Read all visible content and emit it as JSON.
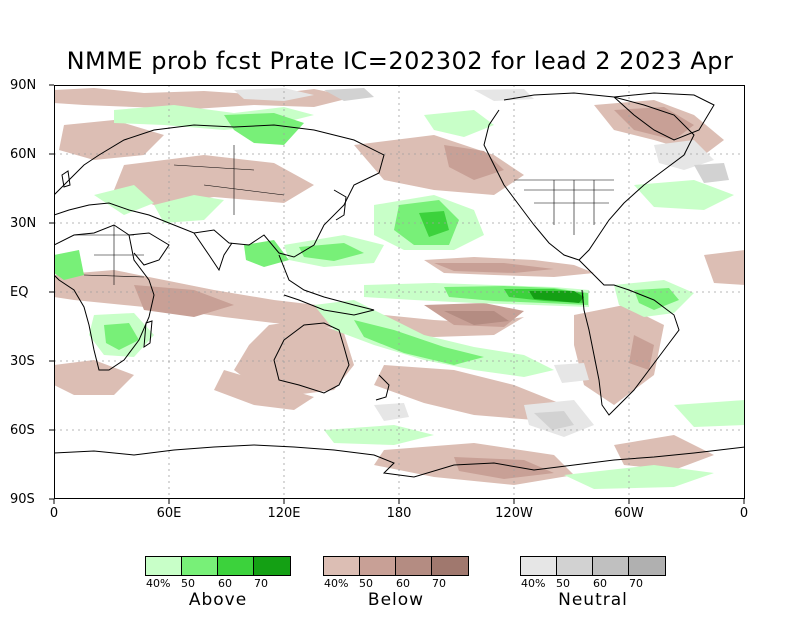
{
  "title": "NMME prob fcst Prate IC=202302 for lead 2 2023 Apr",
  "lat_labels": [
    "90N",
    "60N",
    "30N",
    "EQ",
    "30S",
    "60S",
    "90S"
  ],
  "lon_labels": [
    "0",
    "60E",
    "120E",
    "180",
    "120W",
    "60W",
    "0"
  ],
  "legends": [
    {
      "name": "Above",
      "ticks": [
        "40%",
        "50",
        "60",
        "70"
      ],
      "colors": [
        "#c8ffc8",
        "#78f078",
        "#3cd23c",
        "#14a014"
      ]
    },
    {
      "name": "Below",
      "ticks": [
        "40%",
        "50",
        "60",
        "70"
      ],
      "colors": [
        "#dcbeb4",
        "#c8a096",
        "#b48c82",
        "#a0786e"
      ]
    },
    {
      "name": "Neutral",
      "ticks": [
        "40%",
        "50",
        "60",
        "70"
      ],
      "colors": [
        "#e6e6e6",
        "#d2d2d2",
        "#c0c0c0",
        "#b0b0b0"
      ]
    }
  ],
  "colors": {
    "frame": "#000000",
    "grid": "#a0a0a0",
    "coast": "#000000"
  }
}
